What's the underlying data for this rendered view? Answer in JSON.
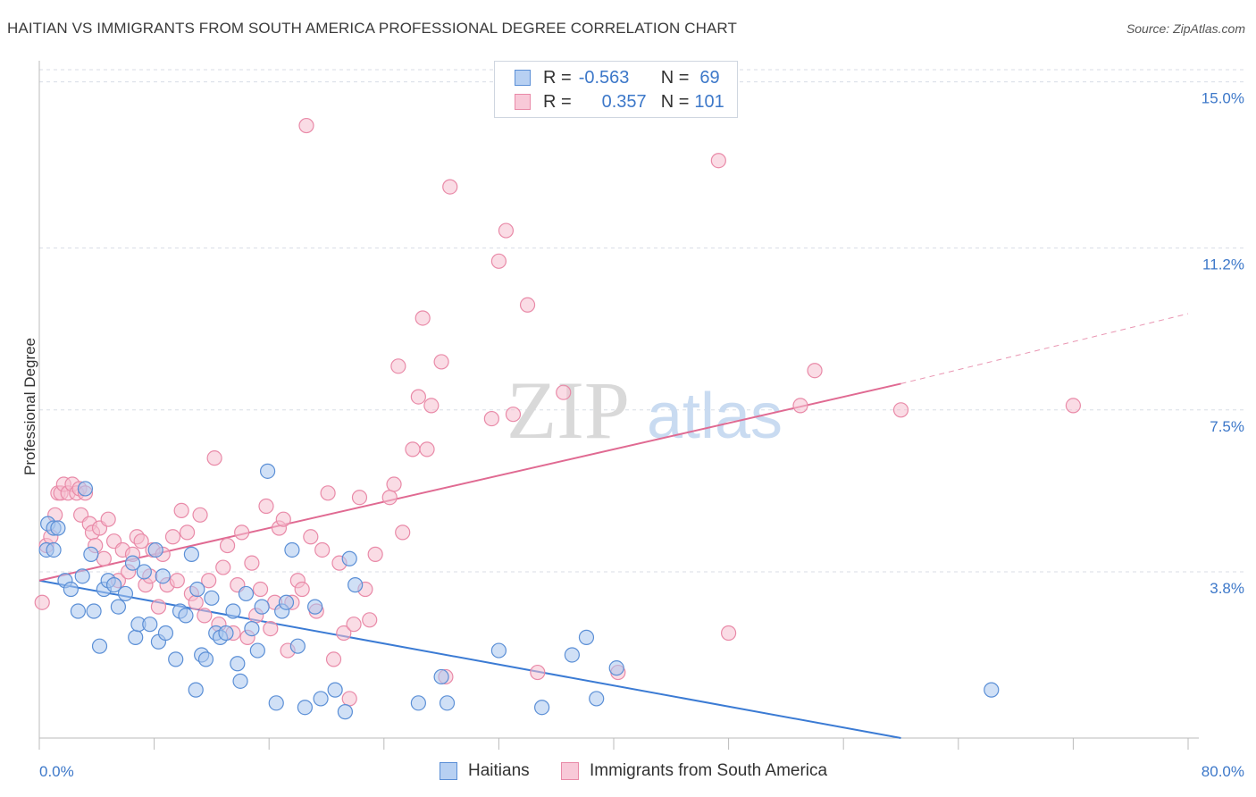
{
  "title": "HAITIAN VS IMMIGRANTS FROM SOUTH AMERICA PROFESSIONAL DEGREE CORRELATION CHART",
  "source": "Source: ZipAtlas.com",
  "watermark": {
    "zip": "ZIP",
    "atlas": "atlas"
  },
  "legend": {
    "r_label": "R =",
    "n_label": "N =",
    "haitians": {
      "r": "-0.563",
      "n": "69"
    },
    "sa": {
      "r": "0.357",
      "n": "101"
    }
  },
  "bottom_legend": {
    "haitians": "Haitians",
    "sa": "Immigrants from South America"
  },
  "colors": {
    "blue_fill": "#a9c6ef",
    "blue_stroke": "#5b8fd6",
    "blue_line": "#3b7bd4",
    "pink_fill": "#f6bfd0",
    "pink_stroke": "#e98aa8",
    "pink_line": "#e06a92",
    "axis_text": "#3d78c9",
    "grid": "#d8dde6"
  },
  "chart_data": {
    "type": "scatter",
    "ylabel": "Professional Degree",
    "x_tick_labels": [
      "0.0%",
      "80.0%"
    ],
    "y_tick_labels": [
      "3.8%",
      "7.5%",
      "11.2%",
      "15.0%"
    ],
    "y_ticks": [
      3.8,
      7.5,
      11.2,
      15.0
    ],
    "xlim": [
      0,
      80
    ],
    "ylim": [
      0,
      15.4
    ],
    "series": [
      {
        "name": "Haitians",
        "color": "blue",
        "points": [
          [
            0.5,
            4.3
          ],
          [
            0.6,
            4.9
          ],
          [
            1.0,
            4.8
          ],
          [
            1.0,
            4.3
          ],
          [
            1.3,
            4.8
          ],
          [
            1.8,
            3.6
          ],
          [
            2.2,
            3.4
          ],
          [
            2.7,
            2.9
          ],
          [
            3.0,
            3.7
          ],
          [
            3.2,
            5.7
          ],
          [
            3.6,
            4.2
          ],
          [
            3.8,
            2.9
          ],
          [
            4.2,
            2.1
          ],
          [
            4.5,
            3.4
          ],
          [
            4.8,
            3.6
          ],
          [
            5.2,
            3.5
          ],
          [
            5.5,
            3.0
          ],
          [
            6.0,
            3.3
          ],
          [
            6.5,
            4.0
          ],
          [
            6.7,
            2.3
          ],
          [
            6.9,
            2.6
          ],
          [
            7.3,
            3.8
          ],
          [
            7.7,
            2.6
          ],
          [
            8.1,
            4.3
          ],
          [
            8.3,
            2.2
          ],
          [
            8.6,
            3.7
          ],
          [
            8.8,
            2.4
          ],
          [
            9.5,
            1.8
          ],
          [
            9.8,
            2.9
          ],
          [
            10.2,
            2.8
          ],
          [
            10.6,
            4.2
          ],
          [
            10.9,
            1.1
          ],
          [
            11.0,
            3.4
          ],
          [
            11.3,
            1.9
          ],
          [
            11.6,
            1.8
          ],
          [
            12.0,
            3.2
          ],
          [
            12.3,
            2.4
          ],
          [
            12.6,
            2.3
          ],
          [
            13.0,
            2.4
          ],
          [
            13.5,
            2.9
          ],
          [
            13.8,
            1.7
          ],
          [
            14.0,
            1.3
          ],
          [
            14.4,
            3.3
          ],
          [
            14.8,
            2.5
          ],
          [
            15.2,
            2.0
          ],
          [
            15.5,
            3.0
          ],
          [
            15.9,
            6.1
          ],
          [
            16.5,
            0.8
          ],
          [
            16.9,
            2.9
          ],
          [
            17.2,
            3.1
          ],
          [
            17.6,
            4.3
          ],
          [
            18.0,
            2.1
          ],
          [
            18.5,
            0.7
          ],
          [
            19.2,
            3.0
          ],
          [
            19.6,
            0.9
          ],
          [
            20.6,
            1.1
          ],
          [
            21.3,
            0.6
          ],
          [
            21.6,
            4.1
          ],
          [
            22.0,
            3.5
          ],
          [
            26.4,
            0.8
          ],
          [
            28.0,
            1.4
          ],
          [
            28.4,
            0.8
          ],
          [
            32.0,
            2.0
          ],
          [
            35.0,
            0.7
          ],
          [
            37.1,
            1.9
          ],
          [
            38.1,
            2.3
          ],
          [
            38.8,
            0.9
          ],
          [
            40.2,
            1.6
          ],
          [
            66.3,
            1.1
          ]
        ]
      },
      {
        "name": "Immigrants from South America",
        "color": "pink",
        "points": [
          [
            0.2,
            3.1
          ],
          [
            0.5,
            4.4
          ],
          [
            0.8,
            4.6
          ],
          [
            1.1,
            5.1
          ],
          [
            1.3,
            5.6
          ],
          [
            1.5,
            5.6
          ],
          [
            1.7,
            5.8
          ],
          [
            2.0,
            5.6
          ],
          [
            2.3,
            5.8
          ],
          [
            2.6,
            5.6
          ],
          [
            2.8,
            5.7
          ],
          [
            2.9,
            5.1
          ],
          [
            3.2,
            5.6
          ],
          [
            3.5,
            4.9
          ],
          [
            3.7,
            4.7
          ],
          [
            3.9,
            4.4
          ],
          [
            4.2,
            4.8
          ],
          [
            4.5,
            4.1
          ],
          [
            4.8,
            5.0
          ],
          [
            5.2,
            4.5
          ],
          [
            5.5,
            3.6
          ],
          [
            5.8,
            4.3
          ],
          [
            6.2,
            3.8
          ],
          [
            6.5,
            4.2
          ],
          [
            6.8,
            4.6
          ],
          [
            7.1,
            4.5
          ],
          [
            7.4,
            3.5
          ],
          [
            7.7,
            3.7
          ],
          [
            7.9,
            4.3
          ],
          [
            8.3,
            3.0
          ],
          [
            8.6,
            4.2
          ],
          [
            8.9,
            3.5
          ],
          [
            9.3,
            4.6
          ],
          [
            9.6,
            3.6
          ],
          [
            9.9,
            5.2
          ],
          [
            10.3,
            4.7
          ],
          [
            10.6,
            3.3
          ],
          [
            10.9,
            3.1
          ],
          [
            11.2,
            5.1
          ],
          [
            11.5,
            2.8
          ],
          [
            11.8,
            3.6
          ],
          [
            12.2,
            6.4
          ],
          [
            12.5,
            2.6
          ],
          [
            12.8,
            3.9
          ],
          [
            13.1,
            4.4
          ],
          [
            13.5,
            2.4
          ],
          [
            13.8,
            3.5
          ],
          [
            14.1,
            4.7
          ],
          [
            14.5,
            2.3
          ],
          [
            14.8,
            4.0
          ],
          [
            15.1,
            2.8
          ],
          [
            15.4,
            3.4
          ],
          [
            15.8,
            5.3
          ],
          [
            16.1,
            2.5
          ],
          [
            16.4,
            3.1
          ],
          [
            16.7,
            4.8
          ],
          [
            17.0,
            5.0
          ],
          [
            17.3,
            2.0
          ],
          [
            17.6,
            3.1
          ],
          [
            18.0,
            3.6
          ],
          [
            18.3,
            3.4
          ],
          [
            18.6,
            14.0
          ],
          [
            18.9,
            4.6
          ],
          [
            19.3,
            2.9
          ],
          [
            19.7,
            4.3
          ],
          [
            20.1,
            5.6
          ],
          [
            20.5,
            1.8
          ],
          [
            20.9,
            4.0
          ],
          [
            21.2,
            2.4
          ],
          [
            21.6,
            0.9
          ],
          [
            21.9,
            2.6
          ],
          [
            22.3,
            5.5
          ],
          [
            22.7,
            3.4
          ],
          [
            23.0,
            2.7
          ],
          [
            23.4,
            4.2
          ],
          [
            24.4,
            5.5
          ],
          [
            24.7,
            5.8
          ],
          [
            25.0,
            8.5
          ],
          [
            25.3,
            4.7
          ],
          [
            26.0,
            6.6
          ],
          [
            26.4,
            7.8
          ],
          [
            26.7,
            9.6
          ],
          [
            27.0,
            6.6
          ],
          [
            27.3,
            7.6
          ],
          [
            28.0,
            8.6
          ],
          [
            28.3,
            1.4
          ],
          [
            28.6,
            12.6
          ],
          [
            31.5,
            7.3
          ],
          [
            32.0,
            10.9
          ],
          [
            32.5,
            11.6
          ],
          [
            33.0,
            7.4
          ],
          [
            34.0,
            9.9
          ],
          [
            34.7,
            1.5
          ],
          [
            36.5,
            7.9
          ],
          [
            40.3,
            1.5
          ],
          [
            47.3,
            13.2
          ],
          [
            48.0,
            2.4
          ],
          [
            53.0,
            7.6
          ],
          [
            54.0,
            8.4
          ],
          [
            60.0,
            7.5
          ],
          [
            72.0,
            7.6
          ]
        ]
      }
    ],
    "trend_lines": [
      {
        "series": "Haitians",
        "x": [
          0,
          60
        ],
        "y": [
          3.6,
          0
        ]
      },
      {
        "series": "Immigrants from South America",
        "x": [
          0,
          60
        ],
        "y": [
          3.6,
          8.1
        ],
        "dashed_x": [
          60,
          80
        ],
        "dashed_y": [
          8.1,
          9.7
        ]
      }
    ]
  }
}
